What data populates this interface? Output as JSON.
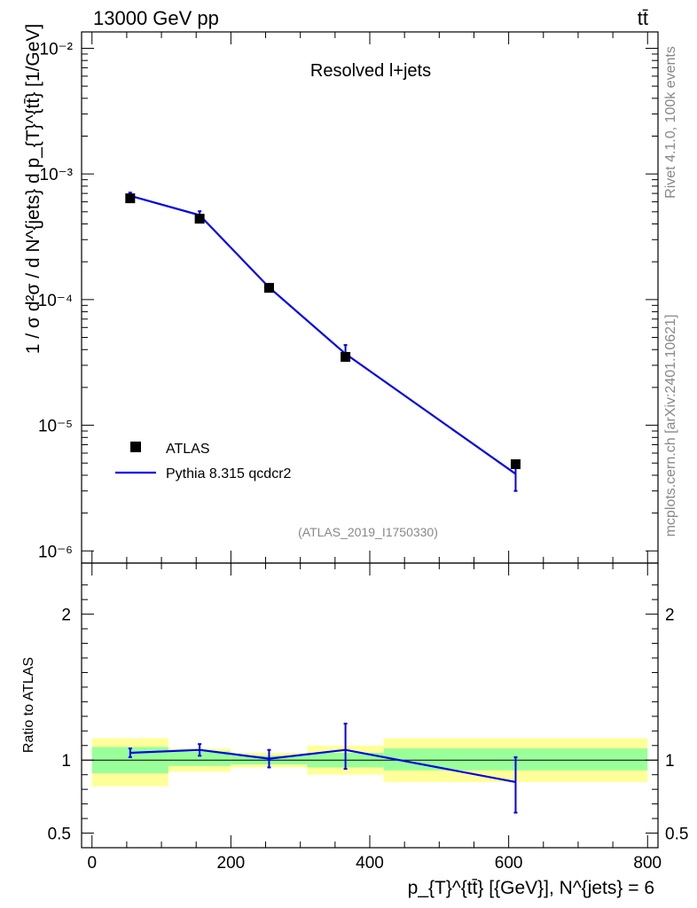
{
  "header": {
    "left": "13000 GeV pp",
    "right": "tt̄"
  },
  "annotation": "Resolved l+jets",
  "analysis_tag": "(ATLAS_2019_I1750330)",
  "side_labels": {
    "rivet": "Rivet 4.1.0,  100k events",
    "mcplots": "mcplots.cern.ch [arXiv:2401.10621]"
  },
  "legend": {
    "data_label": "ATLAS",
    "mc_label": "Pythia 8.315 qcdcr2"
  },
  "colors": {
    "mc": "#0000ee",
    "band_inner": "#99ff99",
    "band_outer": "#ffff99"
  },
  "chart_data": [
    {
      "type": "scatter",
      "panel": "main",
      "ylabel": "1 / σ d²σ / d N^{jets} d p_{T}^{tt̄} [1/GeV]",
      "yscale": "log",
      "ylim": [
        8e-07,
        0.0135
      ],
      "xlim": [
        -15,
        815
      ],
      "y_ticklabels": [
        "10⁻⁶",
        "10⁻⁵",
        "10⁻⁴",
        "10⁻³",
        "10⁻²"
      ],
      "series": [
        {
          "name": "ATLAS",
          "x": [
            55,
            155,
            255,
            365,
            610
          ],
          "x_bins": [
            [
              0,
              110
            ],
            [
              110,
              200
            ],
            [
              200,
              310
            ],
            [
              310,
              420
            ],
            [
              420,
              800
            ]
          ],
          "values": [
            0.00064,
            0.00044,
            0.000124,
            3.5e-05,
            4.9e-06
          ]
        },
        {
          "name": "Pythia 8.315 qcdcr2",
          "x": [
            55,
            155,
            255,
            365,
            610
          ],
          "values": [
            0.00067,
            0.00047,
            0.000125,
            3.7e-05,
            4.1e-06
          ],
          "err_low": [
            0.00062,
            0.000435,
            0.000117,
            3.25e-05,
            3e-06
          ],
          "err_high": [
            0.00071,
            0.000505,
            0.000133,
            4.35e-05,
            5e-06
          ]
        }
      ]
    },
    {
      "type": "line",
      "panel": "ratio",
      "ylabel": "Ratio to ATLAS",
      "xlabel": "p_{T}^{tt̄} [{GeV}], N^{jets} = 6",
      "ylim": [
        0.4,
        2.35
      ],
      "xlim": [
        -15,
        815
      ],
      "x_ticks": [
        0,
        200,
        400,
        600,
        800
      ],
      "y_ticks": [
        0.5,
        1,
        2
      ],
      "bands": [
        {
          "x0": 0,
          "x1": 110,
          "inner": [
            0.91,
            1.09
          ],
          "outer": [
            0.82,
            1.15
          ]
        },
        {
          "x0": 110,
          "x1": 200,
          "inner": [
            0.96,
            1.06
          ],
          "outer": [
            0.92,
            1.08
          ]
        },
        {
          "x0": 200,
          "x1": 310,
          "inner": [
            0.97,
            1.03
          ],
          "outer": [
            0.95,
            1.05
          ]
        },
        {
          "x0": 310,
          "x1": 420,
          "inner": [
            0.95,
            1.05
          ],
          "outer": [
            0.9,
            1.1
          ]
        },
        {
          "x0": 420,
          "x1": 800,
          "inner": [
            0.93,
            1.08
          ],
          "outer": [
            0.85,
            1.15
          ]
        }
      ],
      "series": [
        {
          "name": "Pythia 8.315 qcdcr2",
          "x": [
            55,
            155,
            255,
            365,
            610
          ],
          "values": [
            1.05,
            1.07,
            1.01,
            1.07,
            0.85
          ],
          "err_low": [
            1.02,
            1.03,
            0.95,
            0.94,
            0.64
          ],
          "err_high": [
            1.08,
            1.11,
            1.07,
            1.25,
            1.02
          ]
        }
      ]
    }
  ]
}
